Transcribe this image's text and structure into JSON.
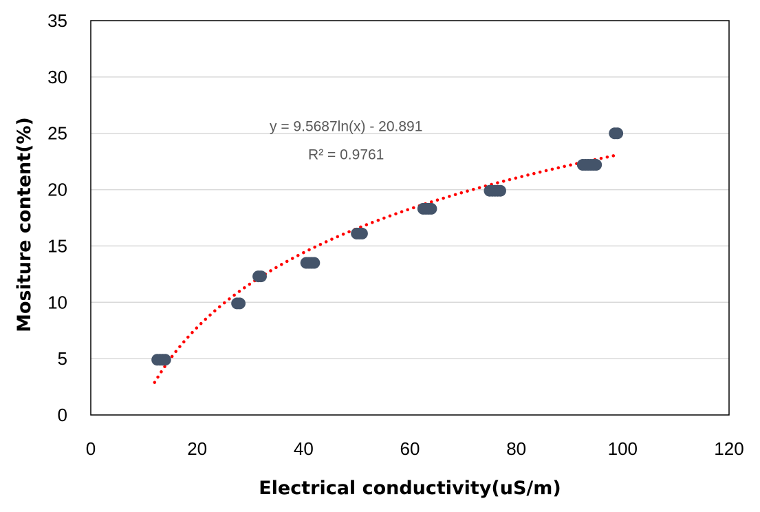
{
  "chart_data": {
    "type": "scatter",
    "title": "",
    "xlabel": "Electrical conductivity(uS/m)",
    "ylabel": "Mositure content(%)",
    "xlim": [
      0,
      120
    ],
    "ylim": [
      0,
      35
    ],
    "xticks": [
      0,
      20,
      40,
      60,
      80,
      100,
      120
    ],
    "yticks": [
      0,
      5,
      10,
      15,
      20,
      25,
      30,
      35
    ],
    "grid": "horizontal",
    "legend": "none",
    "series": [
      {
        "name": "",
        "color": "#44546a",
        "points": [
          {
            "x": 12.5,
            "y": 4.9
          },
          {
            "x": 13.0,
            "y": 4.9
          },
          {
            "x": 13.5,
            "y": 4.9
          },
          {
            "x": 14.0,
            "y": 4.9
          },
          {
            "x": 27.5,
            "y": 9.9
          },
          {
            "x": 28.0,
            "y": 9.9
          },
          {
            "x": 31.5,
            "y": 12.3
          },
          {
            "x": 32.0,
            "y": 12.3
          },
          {
            "x": 40.5,
            "y": 13.5
          },
          {
            "x": 41.0,
            "y": 13.5
          },
          {
            "x": 41.5,
            "y": 13.5
          },
          {
            "x": 42.0,
            "y": 13.5
          },
          {
            "x": 50.0,
            "y": 16.1
          },
          {
            "x": 50.5,
            "y": 16.1
          },
          {
            "x": 51.0,
            "y": 16.1
          },
          {
            "x": 62.5,
            "y": 18.3
          },
          {
            "x": 63.0,
            "y": 18.3
          },
          {
            "x": 63.5,
            "y": 18.3
          },
          {
            "x": 64.0,
            "y": 18.3
          },
          {
            "x": 75.0,
            "y": 19.9
          },
          {
            "x": 75.5,
            "y": 19.9
          },
          {
            "x": 76.0,
            "y": 19.9
          },
          {
            "x": 76.5,
            "y": 19.9
          },
          {
            "x": 77.0,
            "y": 19.9
          },
          {
            "x": 92.5,
            "y": 22.2
          },
          {
            "x": 93.0,
            "y": 22.2
          },
          {
            "x": 93.5,
            "y": 22.2
          },
          {
            "x": 94.0,
            "y": 22.2
          },
          {
            "x": 94.5,
            "y": 22.2
          },
          {
            "x": 95.0,
            "y": 22.2
          },
          {
            "x": 98.5,
            "y": 25.0
          },
          {
            "x": 99.0,
            "y": 25.0
          }
        ]
      }
    ],
    "trendline": {
      "type": "logarithmic",
      "a": 9.5687,
      "b": -20.891,
      "x_range": [
        12,
        99
      ],
      "color": "#ff0000",
      "style": "dotted"
    },
    "annotations": [
      {
        "text": "y = 9.5687ln(x) - 20.891",
        "x": 48,
        "y": 25.2
      },
      {
        "text": "R² = 0.9761",
        "x": 48,
        "y": 22.7
      }
    ]
  }
}
